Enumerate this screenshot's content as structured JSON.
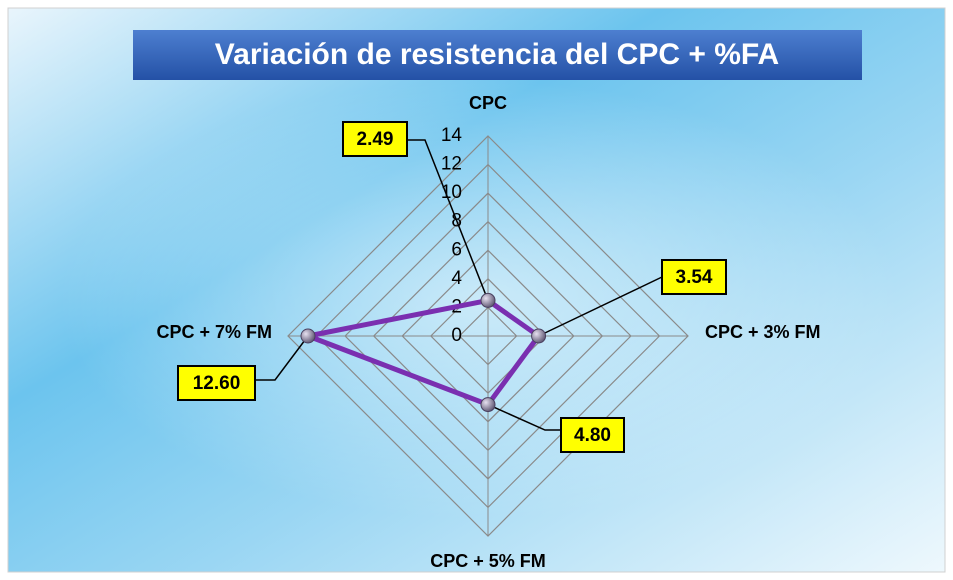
{
  "chart_data": {
    "type": "radar",
    "title": "Variación de resistencia del CPC + %FA",
    "categories": [
      "CPC",
      "CPC + 3% FM",
      "CPC + 5% FM",
      "CPC + 7% FM"
    ],
    "values": [
      2.49,
      3.54,
      4.8,
      12.6
    ],
    "value_labels": [
      "2.49",
      "3.54",
      "4.80",
      "12.60"
    ],
    "color": "#7a2fb0",
    "ylim": [
      0,
      14
    ],
    "yticks": [
      0,
      2,
      4,
      6,
      8,
      10,
      12,
      14
    ],
    "grid": true
  }
}
